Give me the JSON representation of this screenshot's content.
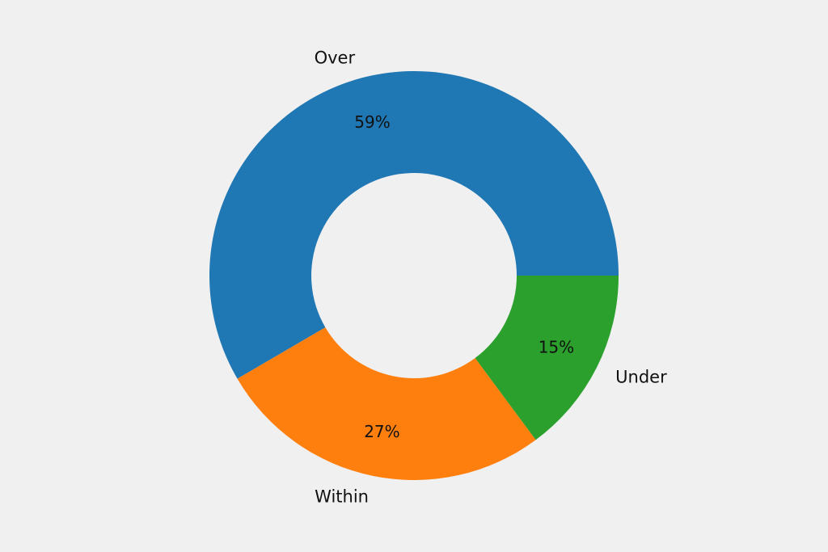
{
  "chart_data": {
    "type": "pie",
    "title": "",
    "categories": [
      "Over",
      "Within",
      "Under"
    ],
    "values": [
      59,
      27,
      15
    ],
    "value_labels": [
      "59%",
      "27%",
      "15%"
    ],
    "colors": [
      "#1f77b4",
      "#ff7f0e",
      "#2ca02c"
    ],
    "donut": true,
    "legend": "none"
  }
}
